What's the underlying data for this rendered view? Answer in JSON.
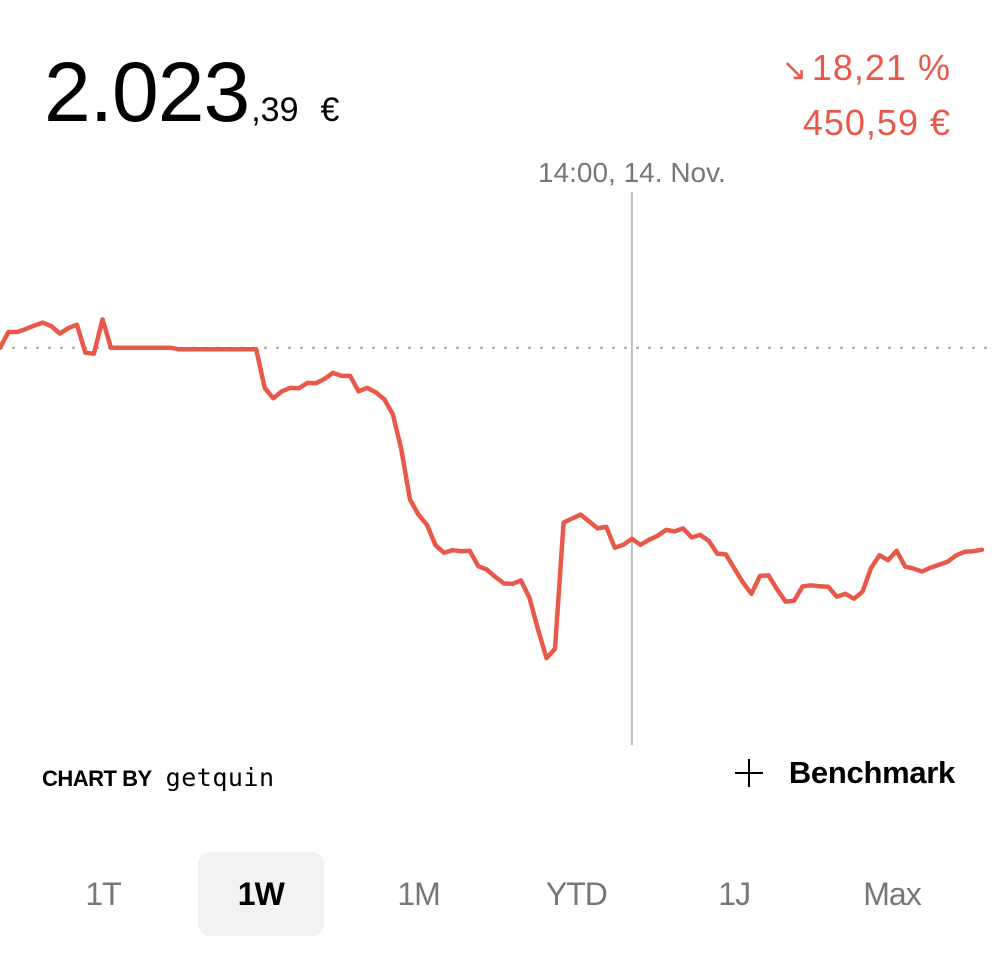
{
  "header": {
    "price_main": "2.023",
    "price_decimals": ",39",
    "price_currency": "€",
    "change_percent": "18,21 %",
    "change_arrow": "↘",
    "change_amount": "450,59 €"
  },
  "colors": {
    "negative": "#e8594a",
    "crosshair": "#bdbdbd",
    "reference": "#a8a8a8"
  },
  "chart_data": {
    "type": "line",
    "crosshair_label": "14:00, 14. Nov.",
    "crosshair_index": 74,
    "reference_value": 2473.98,
    "ylim": [
      1750,
      2830
    ],
    "grid": false,
    "series": [
      {
        "values": [
          2473.98,
          2502.4,
          2502.4,
          2507.7,
          2513.9,
          2519.3,
          2513.0,
          2499.6,
          2509.3,
          2515.5,
          2465.1,
          2463.3,
          2525.1,
          2473.98,
          2473.98,
          2473.98,
          2473.98,
          2473.98,
          2473.98,
          2473.98,
          2473.98,
          2471.3,
          2471.3,
          2471.3,
          2471.3,
          2471.3,
          2471.3,
          2471.3,
          2471.3,
          2471.3,
          2471.3,
          2401.8,
          2383.1,
          2395.6,
          2401.8,
          2401.0,
          2410.8,
          2410.0,
          2418.0,
          2428.7,
          2423.4,
          2423.4,
          2395.6,
          2401.8,
          2393.8,
          2381.3,
          2354.6,
          2291.4,
          2201.3,
          2173.7,
          2155.1,
          2118.5,
          2105.1,
          2109.6,
          2107.8,
          2108.7,
          2081.1,
          2074.9,
          2061.5,
          2049.9,
          2049.0,
          2055.3,
          2024.1,
          1967.1,
          1915.4,
          1932.3,
          2159.5,
          2166.7,
          2173.7,
          2161.3,
          2148.8,
          2151.5,
          2114.0,
          2119.4,
          2130.1,
          2119.4,
          2128.3,
          2135.4,
          2146.1,
          2143.4,
          2148.8,
          2132.7,
          2137.2,
          2126.5,
          2103.3,
          2102.4,
          2076.6,
          2051.7,
          2031.2,
          2063.3,
          2064.2,
          2039.3,
          2016.9,
          2018.7,
          2044.6,
          2046.4,
          2044.6,
          2043.7,
          2025.9,
          2031.2,
          2022.3,
          2034.8,
          2077.5,
          2100.6,
          2091.7,
          2108.7,
          2080.2,
          2076.6,
          2071.3,
          2078.4,
          2083.8,
          2089.1,
          2100.6,
          2106.9,
          2107.8,
          2110.5
        ]
      }
    ]
  },
  "footer": {
    "brand_label": "CHART BY",
    "brand_name": "getquin",
    "benchmark_label": "Benchmark"
  },
  "tabs": [
    {
      "label": "1T",
      "active": false
    },
    {
      "label": "1W",
      "active": true
    },
    {
      "label": "1M",
      "active": false
    },
    {
      "label": "YTD",
      "active": false
    },
    {
      "label": "1J",
      "active": false
    },
    {
      "label": "Max",
      "active": false
    }
  ]
}
